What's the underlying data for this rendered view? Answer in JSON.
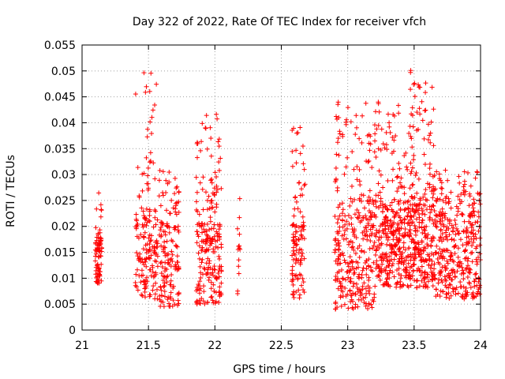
{
  "chart_data": {
    "type": "scatter",
    "title": "Day 322 of 2022, Rate Of TEC Index for receiver vfch",
    "xlabel": "GPS time / hours",
    "ylabel": "ROTI / TECUs",
    "xlim": [
      21,
      24
    ],
    "ylim": [
      0,
      0.055
    ],
    "grid": true,
    "marker": "+",
    "color": "#ff0000",
    "x_ticks": [
      21,
      21.5,
      22,
      22.5,
      23,
      23.5,
      24
    ],
    "x_tick_labels": [
      "21",
      "21.5",
      "22",
      "22.5",
      "23",
      "23.5",
      "24"
    ],
    "y_ticks": [
      0,
      0.005,
      0.01,
      0.015,
      0.02,
      0.025,
      0.03,
      0.035,
      0.04,
      0.045,
      0.05,
      0.055
    ],
    "y_tick_labels": [
      "0",
      "0.005",
      "0.01",
      "0.015",
      "0.02",
      "0.025",
      "0.03",
      "0.035",
      "0.04",
      "0.045",
      "0.05",
      "0.055"
    ],
    "series": [
      {
        "name": "ROTI",
        "clusters": [
          {
            "x_range": [
              21.1,
              21.15
            ],
            "y_base": [
              0.009,
              0.018
            ],
            "y_spread": [
              0.015,
              0.029
            ],
            "count": 80
          },
          {
            "x_range": [
              21.4,
              21.57
            ],
            "y_base": [
              0.006,
              0.022
            ],
            "y_spread": [
              0.022,
              0.05
            ],
            "count": 170
          },
          {
            "x_range": [
              21.58,
              21.73
            ],
            "y_base": [
              0.0045,
              0.02
            ],
            "y_spread": [
              0.02,
              0.032
            ],
            "count": 150
          },
          {
            "x_range": [
              21.86,
              22.05
            ],
            "y_base": [
              0.005,
              0.02
            ],
            "y_spread": [
              0.02,
              0.042
            ],
            "count": 220
          },
          {
            "x_range": [
              22.17,
              22.19
            ],
            "y_base": [
              0.007,
              0.026
            ],
            "y_spread": [
              0.007,
              0.026
            ],
            "count": 14
          },
          {
            "x_range": [
              22.58,
              22.68
            ],
            "y_base": [
              0.006,
              0.02
            ],
            "y_spread": [
              0.02,
              0.04
            ],
            "count": 110
          },
          {
            "x_range": [
              22.9,
              23.2
            ],
            "y_base": [
              0.004,
              0.022
            ],
            "y_spread": [
              0.022,
              0.044
            ],
            "count": 320
          },
          {
            "x_range": [
              23.2,
              23.45
            ],
            "y_base": [
              0.008,
              0.024
            ],
            "y_spread": [
              0.024,
              0.044
            ],
            "count": 330
          },
          {
            "x_range": [
              23.45,
              23.65
            ],
            "y_base": [
              0.008,
              0.024
            ],
            "y_spread": [
              0.024,
              0.0515
            ],
            "count": 300
          },
          {
            "x_range": [
              23.65,
              24.0
            ],
            "y_base": [
              0.006,
              0.022
            ],
            "y_spread": [
              0.022,
              0.031
            ],
            "count": 360
          }
        ]
      }
    ]
  }
}
